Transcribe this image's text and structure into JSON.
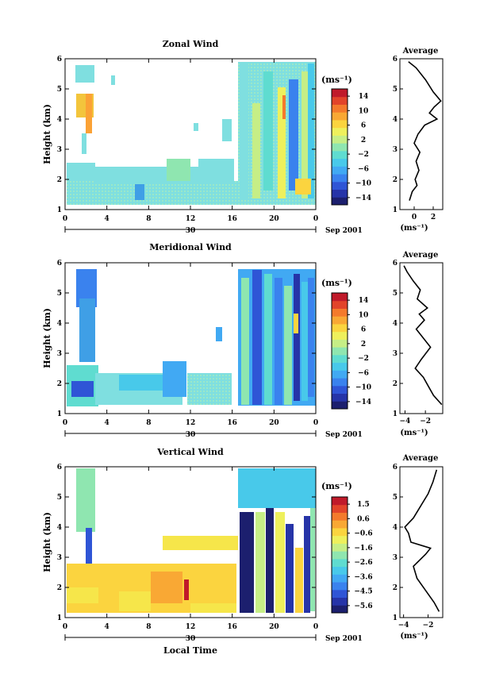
{
  "colors": {
    "scale": [
      "#1c1f6e",
      "#2634a8",
      "#2f55d6",
      "#3a82ee",
      "#41a9f3",
      "#48c9ea",
      "#5fdcd0",
      "#8fe6b0",
      "#c6ee86",
      "#eef05c",
      "#fbd43f",
      "#f9a834",
      "#f47a2c",
      "#e2442a",
      "#c01a2a"
    ],
    "wind_pale": "#7fdfe0",
    "vertical_pale": "#f6e64a"
  },
  "xaxis": {
    "ticks": [
      "0",
      "4",
      "8",
      "12",
      "16",
      "20",
      "0"
    ],
    "date_day": "30",
    "date_label": "Sep 2001",
    "label": "Local Time"
  },
  "chart_data": [
    {
      "type": "heatmap",
      "title": "Zonal Wind",
      "ylabel": "Height (km)",
      "yticks": [
        "1",
        "2",
        "3",
        "4",
        "5",
        "6"
      ],
      "ylim": [
        1,
        6
      ],
      "xlim": [
        0,
        24
      ],
      "colorbar": {
        "unit": "(ms⁻¹)",
        "labels": [
          "14",
          "10",
          "6",
          "2",
          "−2",
          "−6",
          "−10",
          "−14"
        ]
      },
      "average": {
        "title": "Average",
        "xlabel": "(ms⁻¹)",
        "xticks": [
          "0",
          "2"
        ],
        "xlim": [
          -1.5,
          3
        ],
        "profile": [
          [
            1.3,
            -0.5
          ],
          [
            1.6,
            -0.2
          ],
          [
            1.8,
            0.3
          ],
          [
            2.0,
            0.1
          ],
          [
            2.3,
            0.5
          ],
          [
            2.6,
            0.2
          ],
          [
            2.9,
            0.6
          ],
          [
            3.2,
            0.0
          ],
          [
            3.5,
            0.4
          ],
          [
            3.8,
            1.1
          ],
          [
            4.0,
            2.4
          ],
          [
            4.2,
            1.6
          ],
          [
            4.4,
            2.1
          ],
          [
            4.6,
            2.8
          ],
          [
            4.9,
            2.0
          ],
          [
            5.3,
            1.2
          ],
          [
            5.7,
            0.2
          ],
          [
            5.9,
            -0.6
          ]
        ]
      }
    },
    {
      "type": "heatmap",
      "title": "Meridional Wind",
      "ylabel": "Height (km)",
      "yticks": [
        "1",
        "2",
        "3",
        "4",
        "5",
        "6"
      ],
      "ylim": [
        1,
        6
      ],
      "xlim": [
        0,
        24
      ],
      "colorbar": {
        "unit": "(ms⁻¹)",
        "labels": [
          "14",
          "10",
          "6",
          "2",
          "−2",
          "−6",
          "−10",
          "−14"
        ]
      },
      "average": {
        "title": "Average",
        "xlabel": "(ms⁻¹)",
        "xticks": [
          "−4",
          "−2"
        ],
        "xlim": [
          -4.5,
          -0.3
        ],
        "profile": [
          [
            1.3,
            -0.4
          ],
          [
            1.6,
            -1.2
          ],
          [
            1.9,
            -1.7
          ],
          [
            2.2,
            -2.2
          ],
          [
            2.5,
            -3.0
          ],
          [
            2.8,
            -2.4
          ],
          [
            3.2,
            -1.5
          ],
          [
            3.5,
            -2.2
          ],
          [
            3.8,
            -2.9
          ],
          [
            4.1,
            -2.1
          ],
          [
            4.3,
            -2.6
          ],
          [
            4.5,
            -1.8
          ],
          [
            4.8,
            -2.8
          ],
          [
            5.1,
            -2.5
          ],
          [
            5.4,
            -3.2
          ],
          [
            5.7,
            -3.8
          ],
          [
            5.9,
            -4.1
          ]
        ]
      }
    },
    {
      "type": "heatmap",
      "title": "Vertical Wind",
      "ylabel": "Height (km)",
      "yticks": [
        "1",
        "2",
        "3",
        "4",
        "5",
        "6"
      ],
      "ylim": [
        1,
        6
      ],
      "xlim": [
        0,
        24
      ],
      "colorbar": {
        "unit": "(ms⁻¹)",
        "labels": [
          "1.5",
          "0.6",
          "−0.6",
          "−1.6",
          "−2.6",
          "−3.6",
          "−4.5",
          "−5.6"
        ]
      },
      "average": {
        "title": "Average",
        "xlabel": "(ms⁻¹)",
        "xticks": [
          "−4",
          "−2"
        ],
        "xlim": [
          -4.3,
          -0.8
        ],
        "profile": [
          [
            1.2,
            -1.1
          ],
          [
            1.5,
            -1.5
          ],
          [
            1.9,
            -2.2
          ],
          [
            2.3,
            -2.9
          ],
          [
            2.7,
            -3.2
          ],
          [
            3.1,
            -2.2
          ],
          [
            3.3,
            -1.8
          ],
          [
            3.5,
            -3.4
          ],
          [
            3.8,
            -3.6
          ],
          [
            4.0,
            -3.9
          ],
          [
            4.3,
            -3.2
          ],
          [
            4.7,
            -2.6
          ],
          [
            5.1,
            -2.0
          ],
          [
            5.5,
            -1.6
          ],
          [
            5.9,
            -1.3
          ]
        ]
      }
    }
  ]
}
